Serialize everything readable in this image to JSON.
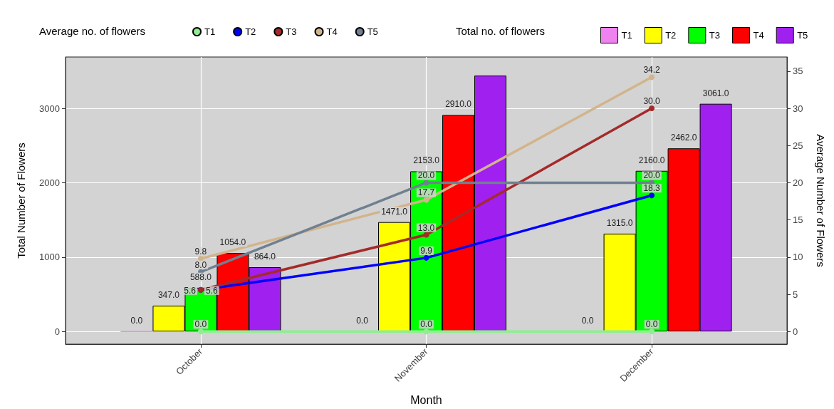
{
  "chart_data": {
    "type": "bar",
    "xlabel": "Month",
    "ylabel": "Total Number of Flowers",
    "y2label": "Average Number of Flowers",
    "legend_title": [
      "Average no. of flowers",
      "Total no. of flowers"
    ],
    "categories": [
      "October",
      "November",
      "December"
    ],
    "series": [
      {
        "name": "T1",
        "color": "#ee82ee",
        "values": [
          0,
          0,
          0
        ],
        "value_labels": [
          "0.0",
          "0.0",
          "0.0"
        ]
      },
      {
        "name": "T2",
        "color": "#ffff00",
        "values": [
          347,
          1471,
          1315
        ],
        "value_labels": [
          "347.0",
          "1471.0",
          "1315.0"
        ]
      },
      {
        "name": "T3",
        "color": "#00ff00",
        "values": [
          588,
          2153,
          2160
        ],
        "value_labels": [
          "588.0",
          "2153.0",
          "2160.0"
        ]
      },
      {
        "name": "T4",
        "color": "#ff0000",
        "values": [
          1054,
          2910,
          2462
        ],
        "value_labels": [
          "1054.0",
          "2910.0",
          "2462.0"
        ]
      },
      {
        "name": "T5",
        "color": "#a020f0",
        "values": [
          864,
          3440,
          3061
        ],
        "value_labels": [
          "864.0",
          null,
          "3061.0"
        ]
      },
      {
        "name": "T1",
        "type": "line",
        "axis": "y2",
        "color": "#90ee90",
        "values": [
          0,
          0,
          0
        ],
        "value_labels": [
          "0.0",
          "0.0",
          "0.0"
        ]
      },
      {
        "name": "T2",
        "type": "line",
        "axis": "y2",
        "color": "#0000ff",
        "values": [
          5.6,
          9.9,
          18.3
        ],
        "value_labels": [
          "5.6",
          "9.9",
          "18.3"
        ]
      },
      {
        "name": "T3",
        "type": "line",
        "axis": "y2",
        "color": "#a52a2a",
        "values": [
          5.6,
          13.0,
          30.0
        ],
        "value_labels": [
          "5.6",
          "13.0",
          "30.0"
        ]
      },
      {
        "name": "T4",
        "type": "line",
        "axis": "y2",
        "color": "#d2b48c",
        "values": [
          9.8,
          17.7,
          34.2
        ],
        "value_labels": [
          "9.8",
          "17.7",
          "34.2"
        ]
      },
      {
        "name": "T5",
        "type": "line",
        "axis": "y2",
        "color": "#708090",
        "values": [
          8.0,
          20.0,
          20.0
        ],
        "value_labels": [
          "8.0",
          "20.0",
          "20.0"
        ]
      }
    ],
    "ylim": [
      -170,
      3690
    ],
    "yticks": [
      0,
      1000,
      2000,
      3000
    ],
    "y2lim": [
      -1.7,
      36.9
    ],
    "y2ticks": [
      0,
      5,
      10,
      15,
      20,
      25,
      30,
      35
    ],
    "grid": true,
    "legend": "top",
    "marker": "circle"
  }
}
